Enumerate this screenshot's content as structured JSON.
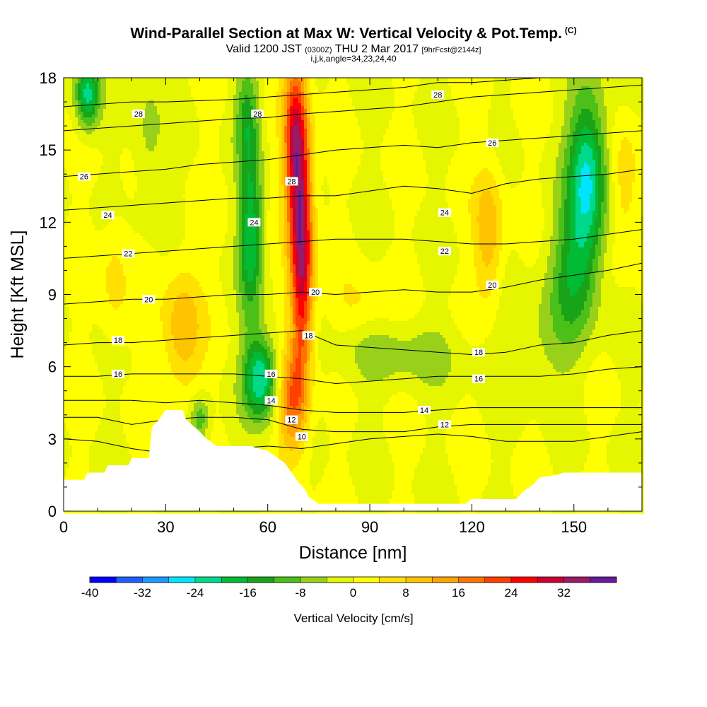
{
  "header": {
    "title": "Wind-Parallel Section at Max W: Vertical Velocity & Pot.Temp.",
    "copyright": "(C)",
    "valid_a": "Valid 1200 JST",
    "valid_z": "(0300Z)",
    "valid_b": "THU 2 Mar 2017",
    "fcst": "[9hrFcst@2144z]",
    "indices": "i,j,k,angle=34,23,24,40"
  },
  "colors": {
    "palette": [
      "#0000ff",
      "#1f5fff",
      "#1a9bff",
      "#00e5ff",
      "#00d98c",
      "#00bb33",
      "#19a319",
      "#4cbf19",
      "#99d11a",
      "#e6f500",
      "#ffff00",
      "#ffe000",
      "#ffc400",
      "#ffa500",
      "#ff7300",
      "#ff4000",
      "#ff0000",
      "#cc0033",
      "#991a66",
      "#661a99"
    ],
    "terrain": "#ffffff",
    "contour": "#000000"
  },
  "chart_data": {
    "type": "heatmap",
    "xlabel": "Distance [nm]",
    "ylabel": "Height [Kft MSL]",
    "xlim": [
      0,
      170
    ],
    "ylim": [
      0,
      18
    ],
    "xticks": [
      "0",
      "30",
      "60",
      "90",
      "120",
      "150"
    ],
    "yticks": [
      "0",
      "3",
      "6",
      "9",
      "12",
      "15",
      "18"
    ],
    "colorbar": {
      "label": "Vertical Velocity [cm/s]",
      "min": -40,
      "max": 38,
      "step": 4,
      "tick_labels": [
        "-40",
        "-32",
        "-24",
        "-16",
        "-8",
        "0",
        "8",
        "16",
        "24",
        "32"
      ]
    },
    "field_anomalies": [
      {
        "x": 70,
        "y": 10.5,
        "dx": 2.4,
        "dy": 3.5,
        "value": 33
      },
      {
        "x": 68,
        "y": 15.5,
        "dx": 2.4,
        "dy": 2.5,
        "value": 26
      },
      {
        "x": 67,
        "y": 4.5,
        "dx": 3,
        "dy": 1.5,
        "value": 18
      },
      {
        "x": 58,
        "y": 5.5,
        "dx": 3.5,
        "dy": 1.2,
        "value": -24
      },
      {
        "x": 55,
        "y": 11.5,
        "dx": 2.5,
        "dy": 2.5,
        "value": -19
      },
      {
        "x": 54,
        "y": 16.5,
        "dx": 2.5,
        "dy": 1.5,
        "value": -12
      },
      {
        "x": 7,
        "y": 17.3,
        "dx": 2.5,
        "dy": 1,
        "value": -22
      },
      {
        "x": 154,
        "y": 14,
        "dx": 4,
        "dy": 2.5,
        "value": -24
      },
      {
        "x": 150,
        "y": 10,
        "dx": 5,
        "dy": 2,
        "value": -13
      },
      {
        "x": 35,
        "y": 7.5,
        "dx": 4,
        "dy": 2,
        "value": 12
      },
      {
        "x": 15,
        "y": 9.5,
        "dx": 3,
        "dy": 2,
        "value": 6
      },
      {
        "x": 125,
        "y": 11.5,
        "dx": 3,
        "dy": 2,
        "value": 12
      },
      {
        "x": 165,
        "y": 13.5,
        "dx": 3,
        "dy": 2,
        "value": 8
      },
      {
        "x": 98,
        "y": 6.5,
        "dx": 15,
        "dy": 1,
        "value": -6
      },
      {
        "x": 88,
        "y": 8.5,
        "dx": 6,
        "dy": 1,
        "value": 5
      },
      {
        "x": 25,
        "y": 15.5,
        "dx": 3,
        "dy": 2,
        "value": -6
      },
      {
        "x": 40,
        "y": 3.8,
        "dx": 2,
        "dy": 0.7,
        "value": -12
      },
      {
        "x": 140,
        "y": 7,
        "dx": 8,
        "dy": 1.5,
        "value": -5
      }
    ],
    "terrain": {
      "x": [
        0,
        6,
        7,
        12,
        13,
        19,
        20,
        25,
        26,
        28,
        30,
        35,
        36,
        40,
        42,
        45,
        50,
        55,
        60,
        63,
        65,
        67,
        69,
        71,
        72,
        75,
        77,
        82,
        88,
        95,
        110,
        118,
        120,
        133,
        135,
        138,
        140,
        145,
        147,
        170
      ],
      "y": [
        1.3,
        1.3,
        1.6,
        1.6,
        1.9,
        1.9,
        2.2,
        2.2,
        3.5,
        3.8,
        4.2,
        4.2,
        3.8,
        3.3,
        3.0,
        2.7,
        2.7,
        2.7,
        2.5,
        2.2,
        2.0,
        1.6,
        1.2,
        0.9,
        0.6,
        0.3,
        0.3,
        0.3,
        0.3,
        0.3,
        0.3,
        0.3,
        0.5,
        0.5,
        0.8,
        1.1,
        1.4,
        1.5,
        1.6,
        1.6
      ]
    },
    "isentropes": [
      {
        "label": "28",
        "y": [
          16.8,
          16.9,
          17.0,
          17.0,
          17.05,
          17.1,
          17.2,
          17.3,
          17.4,
          17.5,
          17.6,
          17.8,
          17.8,
          17.9,
          18.0,
          18.0,
          18.0,
          18.0
        ],
        "label_positions": [
          [
            22,
            16.5
          ],
          [
            57,
            16.5
          ]
        ]
      },
      {
        "label": "28",
        "y": [
          15.8,
          15.9,
          16.0,
          16.1,
          16.2,
          16.3,
          16.35,
          16.5,
          16.6,
          16.7,
          16.8,
          17.0,
          17.2,
          17.3,
          17.4,
          17.5,
          17.6,
          17.7
        ],
        "label_positions": [
          [
            110,
            17.3
          ],
          [
            67,
            13.7
          ]
        ]
      },
      {
        "label": "26",
        "y": [
          13.9,
          14.0,
          14.1,
          14.2,
          14.4,
          14.5,
          14.6,
          14.8,
          15.0,
          15.1,
          15.2,
          15.1,
          15.3,
          15.4,
          15.5,
          15.6,
          15.7,
          15.8
        ],
        "label_positions": [
          [
            6,
            13.9
          ],
          [
            126,
            15.3
          ]
        ]
      },
      {
        "label": "24",
        "y": [
          12.5,
          12.6,
          12.7,
          12.8,
          12.9,
          13.0,
          13.0,
          13.1,
          13.1,
          13.3,
          13.5,
          13.4,
          13.2,
          13.6,
          13.8,
          13.9,
          14.0,
          14.2
        ],
        "label_positions": [
          [
            13,
            12.3
          ],
          [
            56,
            12.0
          ],
          [
            112,
            12.4
          ]
        ]
      },
      {
        "label": "22",
        "y": [
          10.5,
          10.6,
          10.7,
          10.8,
          10.9,
          11.0,
          11.1,
          11.2,
          11.3,
          11.3,
          11.3,
          11.2,
          11.1,
          11.1,
          11.2,
          11.3,
          11.5,
          11.7
        ],
        "label_positions": [
          [
            19,
            10.7
          ],
          [
            112,
            10.8
          ]
        ]
      },
      {
        "label": "20",
        "y": [
          8.6,
          8.7,
          8.8,
          8.8,
          8.9,
          9.0,
          9.0,
          9.1,
          9.0,
          9.1,
          9.2,
          9.1,
          9.1,
          9.3,
          9.6,
          9.8,
          10.0,
          10.3
        ],
        "label_positions": [
          [
            25,
            8.8
          ],
          [
            74,
            9.1
          ],
          [
            126,
            9.4
          ]
        ]
      },
      {
        "label": "18",
        "y": [
          6.9,
          7.0,
          7.0,
          7.1,
          7.2,
          7.3,
          7.4,
          7.5,
          6.9,
          6.8,
          6.7,
          6.6,
          6.5,
          6.6,
          6.9,
          7.0,
          7.3,
          7.5
        ],
        "label_positions": [
          [
            16,
            7.1
          ],
          [
            72,
            7.3
          ],
          [
            122,
            6.6
          ]
        ]
      },
      {
        "label": "16",
        "y": [
          5.6,
          5.6,
          5.7,
          5.7,
          5.7,
          5.7,
          5.6,
          5.5,
          5.3,
          5.4,
          5.5,
          5.6,
          5.6,
          5.6,
          5.6,
          5.7,
          5.9,
          6.0
        ],
        "label_positions": [
          [
            16,
            5.7
          ],
          [
            61,
            5.7
          ],
          [
            122,
            5.5
          ]
        ]
      },
      {
        "label": "14",
        "y": [
          4.6,
          4.6,
          4.6,
          4.5,
          4.6,
          4.5,
          4.4,
          4.2,
          4.1,
          4.1,
          4.1,
          4.2,
          4.3,
          4.3,
          4.3,
          4.3,
          4.3,
          4.3
        ],
        "label_positions": [
          [
            61,
            4.6
          ],
          [
            106,
            4.2
          ]
        ]
      },
      {
        "label": "12",
        "y": [
          3.9,
          3.9,
          3.6,
          3.8,
          3.9,
          3.9,
          3.8,
          3.4,
          3.3,
          3.3,
          3.3,
          3.5,
          3.6,
          3.6,
          3.6,
          3.6,
          3.6,
          3.6
        ],
        "label_positions": [
          [
            67,
            3.8
          ],
          [
            112,
            3.6
          ]
        ]
      },
      {
        "label": "10",
        "y": [
          3.0,
          2.9,
          2.6,
          2.4,
          2.4,
          2.6,
          2.7,
          2.6,
          2.8,
          3.0,
          3.1,
          3.2,
          3.1,
          2.9,
          2.9,
          2.9,
          3.1,
          3.3
        ],
        "label_positions": [
          [
            70,
            3.1
          ]
        ]
      }
    ]
  },
  "footer": {}
}
